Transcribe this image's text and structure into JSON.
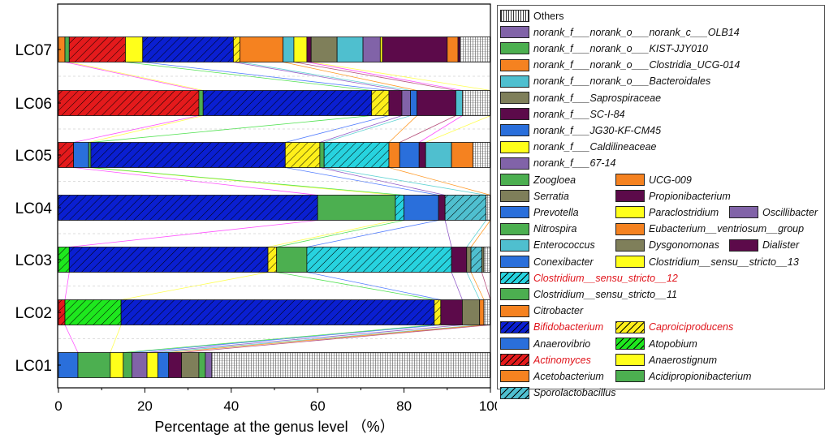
{
  "chart_data": {
    "type": "bar",
    "orientation": "horizontal",
    "stacked": true,
    "xlabel": "Percentage at the genus level （%）",
    "xlim": [
      0,
      100
    ],
    "x_ticks": [
      "0",
      "20",
      "40",
      "60",
      "80",
      "100"
    ],
    "categories": [
      "LC01",
      "LC02",
      "LC03",
      "LC04",
      "LC05",
      "LC06",
      "LC07"
    ],
    "taxa": [
      {
        "name": "Acetobacterium",
        "color": "#f58220",
        "hatch": "none",
        "highlight": false
      },
      {
        "name": "Actinomyces",
        "color": "#e41a1c",
        "hatch": "hatch",
        "highlight": true
      },
      {
        "name": "Anaerovibrio",
        "color": "#2a6fdb",
        "hatch": "none",
        "highlight": false
      },
      {
        "name": "Bifidobacterium",
        "color": "#0a1fd1",
        "hatch": "hatch",
        "highlight": true
      },
      {
        "name": "Citrobacter",
        "color": "#f58220",
        "hatch": "none",
        "highlight": false
      },
      {
        "name": "Clostridium__sensu_stricto__11",
        "color": "#4caf50",
        "hatch": "none",
        "highlight": false
      },
      {
        "name": "Clostridium__sensu_stricto__12",
        "color": "#27d3df",
        "hatch": "hatch",
        "highlight": true
      },
      {
        "name": "Conexibacter",
        "color": "#2a6fdb",
        "hatch": "none",
        "highlight": false
      },
      {
        "name": "Enterococcus",
        "color": "#4fbfcf",
        "hatch": "none",
        "highlight": false
      },
      {
        "name": "Nitrospira",
        "color": "#4caf50",
        "hatch": "none",
        "highlight": false
      },
      {
        "name": "Prevotella",
        "color": "#2a6fdb",
        "hatch": "none",
        "highlight": false
      },
      {
        "name": "Serratia",
        "color": "#7f7f5a",
        "hatch": "none",
        "highlight": false
      },
      {
        "name": "Zoogloea",
        "color": "#4caf50",
        "hatch": "none",
        "highlight": false
      },
      {
        "name": "Sporolactobacillus",
        "color": "#4fbfcf",
        "hatch": "hatch",
        "highlight": false
      },
      {
        "name": "Acidipropionibacterium",
        "color": "#4caf50",
        "hatch": "none",
        "highlight": false
      },
      {
        "name": "Anaerostignum",
        "color": "#ffff1a",
        "hatch": "none",
        "highlight": false
      },
      {
        "name": "Atopobium",
        "color": "#1ee81e",
        "hatch": "hatch",
        "highlight": false
      },
      {
        "name": "Caproiciproducens",
        "color": "#ffef1a",
        "hatch": "hatch",
        "highlight": true
      },
      {
        "name": "Clostridium__sensu__stricto__13",
        "color": "#ffff1a",
        "hatch": "none",
        "highlight": false
      },
      {
        "name": "Dysgonomonas",
        "color": "#7f7f5a",
        "hatch": "none",
        "highlight": false
      },
      {
        "name": "Eubacterium__ventriosum__group",
        "color": "#f58220",
        "hatch": "none",
        "highlight": false
      },
      {
        "name": "Paraclostridium",
        "color": "#ffff1a",
        "hatch": "none",
        "highlight": false
      },
      {
        "name": "Propionibacterium",
        "color": "#5c0a4a",
        "hatch": "none",
        "highlight": false
      },
      {
        "name": "UCG-009",
        "color": "#f58220",
        "hatch": "none",
        "highlight": false
      },
      {
        "name": "Oscillibacter",
        "color": "#8163a8",
        "hatch": "none",
        "highlight": false
      },
      {
        "name": "Dialister",
        "color": "#5c0a4a",
        "hatch": "none",
        "highlight": false
      },
      {
        "name": "norank_f___67-14",
        "color": "#8163a8",
        "hatch": "none",
        "highlight": false
      },
      {
        "name": "norank_f___Caldilineaceae",
        "color": "#ffff1a",
        "hatch": "none",
        "highlight": false
      },
      {
        "name": "norank_f___JG30-KF-CM45",
        "color": "#2a6fdb",
        "hatch": "none",
        "highlight": false
      },
      {
        "name": "norank_f___SC-I-84",
        "color": "#5c0a4a",
        "hatch": "none",
        "highlight": false
      },
      {
        "name": "norank_f___Saprospiraceae",
        "color": "#7f7f5a",
        "hatch": "none",
        "highlight": false
      },
      {
        "name": "norank_f___norank_o___Bacteroidales",
        "color": "#4fbfcf",
        "hatch": "none",
        "highlight": false
      },
      {
        "name": "norank_f___norank_o___Clostridia_UCG-014",
        "color": "#f58220",
        "hatch": "none",
        "highlight": false
      },
      {
        "name": "norank_f___norank_o___KIST-JJY010",
        "color": "#4caf50",
        "hatch": "none",
        "highlight": false
      },
      {
        "name": "norank_f___norank_o___norank_c___OLB14",
        "color": "#8163a8",
        "hatch": "none",
        "highlight": false
      },
      {
        "name": "Others",
        "color": "#cccccc",
        "hatch": "grid",
        "highlight": false
      }
    ],
    "bars": [
      {
        "category": "LC01",
        "segments": [
          {
            "taxon": "Anaerovibrio",
            "value": 4.5
          },
          {
            "taxon": "Acidipropionibacterium",
            "value": 7.5
          },
          {
            "taxon": "Anaerostignum",
            "value": 3
          },
          {
            "taxon": "Nitrospira",
            "value": 2
          },
          {
            "taxon": "norank_f___67-14",
            "value": 3.5
          },
          {
            "taxon": "Paraclostridium",
            "value": 2.5
          },
          {
            "taxon": "Prevotella",
            "value": 2.5
          },
          {
            "taxon": "Dialister",
            "value": 3
          },
          {
            "taxon": "Serratia",
            "value": 4
          },
          {
            "taxon": "Zoogloea",
            "value": 1.5
          },
          {
            "taxon": "Oscillibacter",
            "value": 1.5
          },
          {
            "taxon": "Others",
            "value": 64.5
          }
        ]
      },
      {
        "category": "LC02",
        "segments": [
          {
            "taxon": "Actinomyces",
            "value": 1.5
          },
          {
            "taxon": "Atopobium",
            "value": 13
          },
          {
            "taxon": "Bifidobacterium",
            "value": 72.5
          },
          {
            "taxon": "Caproiciproducens",
            "value": 1.5
          },
          {
            "taxon": "Propionibacterium",
            "value": 5
          },
          {
            "taxon": "Dysgonomonas",
            "value": 4
          },
          {
            "taxon": "Eubacterium__ventriosum__group",
            "value": 1
          },
          {
            "taxon": "Others",
            "value": 1.5
          }
        ]
      },
      {
        "category": "LC03",
        "segments": [
          {
            "taxon": "Atopobium",
            "value": 2.5
          },
          {
            "taxon": "Bifidobacterium",
            "value": 46
          },
          {
            "taxon": "Caproiciproducens",
            "value": 2
          },
          {
            "taxon": "Clostridium__sensu_stricto__11",
            "value": 7
          },
          {
            "taxon": "Clostridium__sensu_stricto__12",
            "value": 33.5
          },
          {
            "taxon": "Propionibacterium",
            "value": 3.5
          },
          {
            "taxon": "Serratia",
            "value": 1
          },
          {
            "taxon": "Sporolactobacillus",
            "value": 2.5
          },
          {
            "taxon": "Dysgonomonas",
            "value": 0.5
          },
          {
            "taxon": "Others",
            "value": 1.5
          }
        ]
      },
      {
        "category": "LC04",
        "segments": [
          {
            "taxon": "Bifidobacterium",
            "value": 60
          },
          {
            "taxon": "Clostridium__sensu_stricto__11",
            "value": 18
          },
          {
            "taxon": "Clostridium__sensu_stricto__12",
            "value": 2
          },
          {
            "taxon": "Prevotella",
            "value": 8
          },
          {
            "taxon": "Propionibacterium",
            "value": 1.5
          },
          {
            "taxon": "Sporolactobacillus",
            "value": 9.5
          },
          {
            "taxon": "Others",
            "value": 1
          }
        ]
      },
      {
        "category": "LC05",
        "segments": [
          {
            "taxon": "Actinomyces",
            "value": 3.5
          },
          {
            "taxon": "Anaerovibrio",
            "value": 3.5
          },
          {
            "taxon": "Zoogloea",
            "value": 0.5
          },
          {
            "taxon": "Bifidobacterium",
            "value": 45
          },
          {
            "taxon": "Caproiciproducens",
            "value": 8
          },
          {
            "taxon": "Clostridium__sensu_stricto__11",
            "value": 1
          },
          {
            "taxon": "Clostridium__sensu_stricto__12",
            "value": 15
          },
          {
            "taxon": "Citrobacter",
            "value": 2.5
          },
          {
            "taxon": "Prevotella",
            "value": 4.5
          },
          {
            "taxon": "Propionibacterium",
            "value": 1.5
          },
          {
            "taxon": "norank_f___norank_o___Bacteroidales",
            "value": 6
          },
          {
            "taxon": "UCG-009",
            "value": 5
          },
          {
            "taxon": "Others",
            "value": 4
          }
        ]
      },
      {
        "category": "LC06",
        "segments": [
          {
            "taxon": "Actinomyces",
            "value": 32.5
          },
          {
            "taxon": "Zoogloea",
            "value": 1
          },
          {
            "taxon": "Bifidobacterium",
            "value": 39
          },
          {
            "taxon": "Caproiciproducens",
            "value": 4
          },
          {
            "taxon": "Propionibacterium",
            "value": 3
          },
          {
            "taxon": "Oscillibacter",
            "value": 2
          },
          {
            "taxon": "Conexibacter",
            "value": 1.5
          },
          {
            "taxon": "norank_f___SC-I-84",
            "value": 9
          },
          {
            "taxon": "Enterococcus",
            "value": 1.5
          },
          {
            "taxon": "Others",
            "value": 6.5
          }
        ]
      },
      {
        "category": "LC07",
        "segments": [
          {
            "taxon": "Acetobacterium",
            "value": 1.5
          },
          {
            "taxon": "Acidipropionibacterium",
            "value": 1
          },
          {
            "taxon": "Actinomyces",
            "value": 13
          },
          {
            "taxon": "Anaerostignum",
            "value": 4
          },
          {
            "taxon": "Bifidobacterium",
            "value": 21
          },
          {
            "taxon": "Caproiciproducens",
            "value": 1.5
          },
          {
            "taxon": "Citrobacter",
            "value": 10
          },
          {
            "taxon": "Enterococcus",
            "value": 2.5
          },
          {
            "taxon": "Paraclostridium",
            "value": 3
          },
          {
            "taxon": "Dialister",
            "value": 1
          },
          {
            "taxon": "Serratia",
            "value": 6
          },
          {
            "taxon": "Enterococcus",
            "value": 6
          },
          {
            "taxon": "Oscillibacter",
            "value": 4
          },
          {
            "taxon": "Anaerostignum",
            "value": 0.5
          },
          {
            "taxon": "Propionibacterium",
            "value": 15
          },
          {
            "taxon": "UCG-009",
            "value": 2.5
          },
          {
            "taxon": "Dialister",
            "value": 0.5
          },
          {
            "taxon": "Others",
            "value": 7
          }
        ]
      }
    ]
  },
  "legend_items": [
    {
      "label": "Others",
      "color": "#cccccc",
      "hatch": "grid",
      "highlight": false,
      "italic": false
    },
    {
      "label": "norank_f___norank_o___norank_c___OLB14",
      "color": "#8163a8",
      "hatch": "none",
      "highlight": false,
      "italic": true
    },
    {
      "label": "norank_f___norank_o___KIST-JJY010",
      "color": "#4caf50",
      "hatch": "none",
      "highlight": false,
      "italic": true
    },
    {
      "label": "norank_f___norank_o___Clostridia_UCG-014",
      "color": "#f58220",
      "hatch": "none",
      "highlight": false,
      "italic": true
    },
    {
      "label": "norank_f___norank_o___Bacteroidales",
      "color": "#4fbfcf",
      "hatch": "none",
      "highlight": false,
      "italic": true
    },
    {
      "label": "norank_f___Saprospiraceae",
      "color": "#7f7f5a",
      "hatch": "none",
      "highlight": false,
      "italic": true
    },
    {
      "label": "norank_f___SC-I-84",
      "color": "#5c0a4a",
      "hatch": "none",
      "highlight": false,
      "italic": true
    },
    {
      "label": "norank_f___JG30-KF-CM45",
      "color": "#2a6fdb",
      "hatch": "none",
      "highlight": false,
      "italic": true
    },
    {
      "label": "norank_f___Caldilineaceae",
      "color": "#ffff1a",
      "hatch": "none",
      "highlight": false,
      "italic": true
    },
    {
      "label": "norank_f___67-14",
      "color": "#8163a8",
      "hatch": "none",
      "highlight": false,
      "italic": true
    },
    {
      "label": "Zoogloea",
      "color": "#4caf50",
      "hatch": "none",
      "highlight": false,
      "italic": true
    },
    {
      "label": "UCG-009",
      "color": "#f58220",
      "hatch": "none",
      "highlight": false,
      "italic": true
    },
    {
      "label": "Serratia",
      "color": "#7f7f5a",
      "hatch": "none",
      "highlight": false,
      "italic": true
    },
    {
      "label": "Propionibacterium",
      "color": "#5c0a4a",
      "hatch": "none",
      "highlight": false,
      "italic": true
    },
    {
      "label": "Prevotella",
      "color": "#2a6fdb",
      "hatch": "none",
      "highlight": false,
      "italic": true
    },
    {
      "label": "Paraclostridium",
      "color": "#ffff1a",
      "hatch": "none",
      "highlight": false,
      "italic": true
    },
    {
      "label": "Oscillibacter",
      "color": "#8163a8",
      "hatch": "none",
      "highlight": false,
      "italic": true
    },
    {
      "label": "Nitrospira",
      "color": "#4caf50",
      "hatch": "none",
      "highlight": false,
      "italic": true
    },
    {
      "label": "Eubacterium__ventriosum__group",
      "color": "#f58220",
      "hatch": "none",
      "highlight": false,
      "italic": true
    },
    {
      "label": "Enterococcus",
      "color": "#4fbfcf",
      "hatch": "none",
      "highlight": false,
      "italic": true
    },
    {
      "label": "Dysgonomonas",
      "color": "#7f7f5a",
      "hatch": "none",
      "highlight": false,
      "italic": true
    },
    {
      "label": "Dialister",
      "color": "#5c0a4a",
      "hatch": "none",
      "highlight": false,
      "italic": true
    },
    {
      "label": "Conexibacter",
      "color": "#2a6fdb",
      "hatch": "none",
      "highlight": false,
      "italic": true
    },
    {
      "label": "Clostridium__sensu__stricto__13",
      "color": "#ffff1a",
      "hatch": "none",
      "highlight": false,
      "italic": true
    },
    {
      "label": "Clostridium__sensu_stricto__12",
      "color": "#27d3df",
      "hatch": "hatch",
      "highlight": true,
      "italic": true
    },
    {
      "label": "Clostridium__sensu_stricto__11",
      "color": "#4caf50",
      "hatch": "none",
      "highlight": false,
      "italic": true
    },
    {
      "label": "Citrobacter",
      "color": "#f58220",
      "hatch": "none",
      "highlight": false,
      "italic": true
    },
    {
      "label": "Caproiciproducens",
      "color": "#ffef1a",
      "hatch": "hatch",
      "highlight": true,
      "italic": true
    },
    {
      "label": "Bifidobacterium",
      "color": "#0a1fd1",
      "hatch": "hatch",
      "highlight": true,
      "italic": true
    },
    {
      "label": "Atopobium",
      "color": "#1ee81e",
      "hatch": "hatch",
      "highlight": false,
      "italic": true
    },
    {
      "label": "Anaerovibrio",
      "color": "#2a6fdb",
      "hatch": "none",
      "highlight": false,
      "italic": true
    },
    {
      "label": "Anaerostignum",
      "color": "#ffff1a",
      "hatch": "none",
      "highlight": false,
      "italic": true
    },
    {
      "label": "Actinomyces",
      "color": "#e41a1c",
      "hatch": "hatch",
      "highlight": true,
      "italic": true
    },
    {
      "label": "Acidipropionibacterium",
      "color": "#4caf50",
      "hatch": "none",
      "highlight": false,
      "italic": true
    },
    {
      "label": "Acetobacterium",
      "color": "#f58220",
      "hatch": "none",
      "highlight": false,
      "italic": true
    },
    {
      "label": "Sporolactobacillus",
      "color": "#4fbfcf",
      "hatch": "hatch",
      "highlight": false,
      "italic": true
    }
  ]
}
